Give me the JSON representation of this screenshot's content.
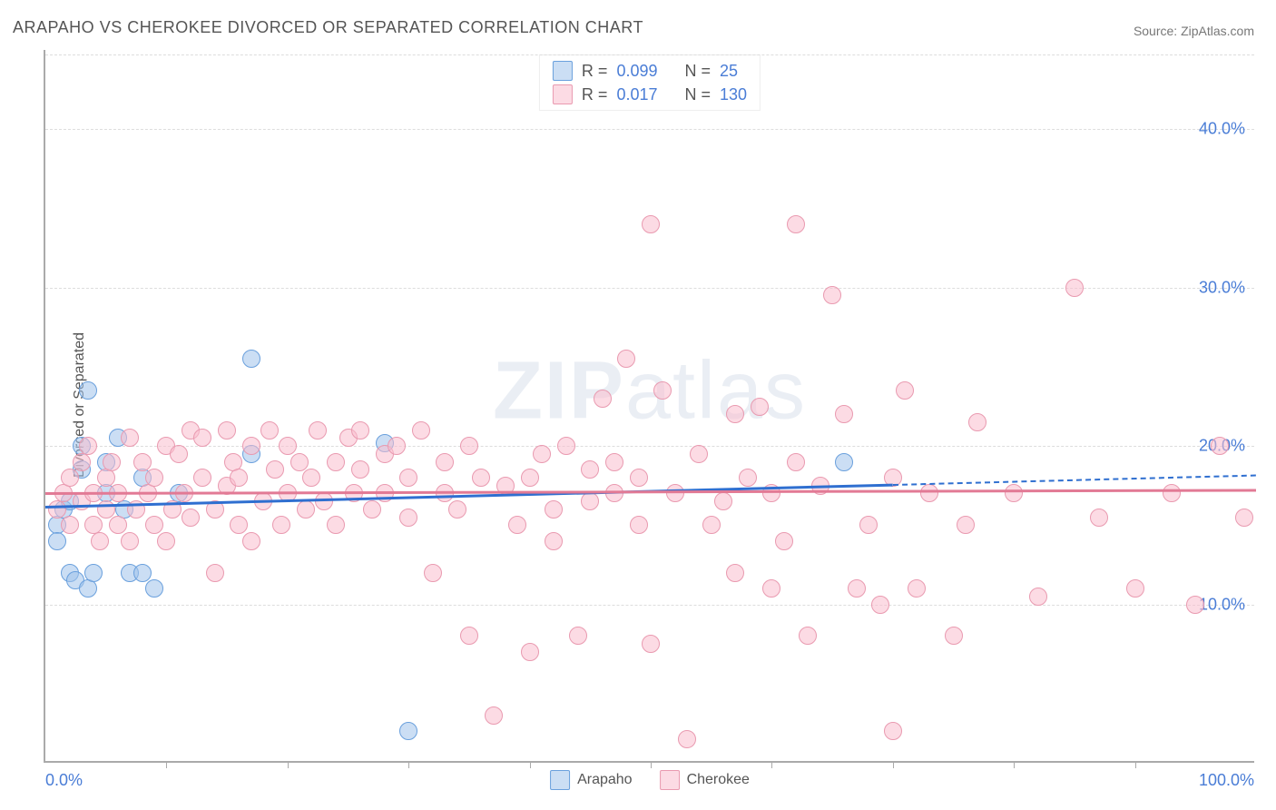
{
  "title": "ARAPAHO VS CHEROKEE DIVORCED OR SEPARATED CORRELATION CHART",
  "source": "Source: ZipAtlas.com",
  "ylabel": "Divorced or Separated",
  "watermark_a": "ZIP",
  "watermark_b": "atlas",
  "chart": {
    "type": "scatter",
    "xlim": [
      0,
      100
    ],
    "ylim": [
      0,
      45
    ],
    "y_ticks": [
      10,
      20,
      30,
      40
    ],
    "y_tick_labels": [
      "10.0%",
      "20.0%",
      "30.0%",
      "40.0%"
    ],
    "x_ticks": [
      10,
      20,
      30,
      40,
      50,
      60,
      70,
      80,
      90
    ],
    "x_min_label": "0.0%",
    "x_max_label": "100.0%",
    "background_color": "#ffffff",
    "grid_color": "#dddddd",
    "axis_color": "#aaaaaa",
    "tick_label_color": "#4a7dd6",
    "marker_radius": 10,
    "marker_border_width": 1.2,
    "series": [
      {
        "name": "Arapaho",
        "fill": "rgba(160,195,235,0.55)",
        "stroke": "#6aa0dd",
        "trend_color": "#2f6fd0",
        "trend": {
          "x1": 0,
          "y1": 16.2,
          "x2": 70,
          "y2": 17.6,
          "dash_to_x": 100,
          "dash_to_y": 18.2
        },
        "points": [
          [
            1,
            15
          ],
          [
            1,
            14
          ],
          [
            1.5,
            16
          ],
          [
            2,
            12
          ],
          [
            2,
            16.5
          ],
          [
            2.5,
            11.5
          ],
          [
            3,
            18.5
          ],
          [
            3,
            20
          ],
          [
            3.5,
            23.5
          ],
          [
            3.5,
            11
          ],
          [
            4,
            12
          ],
          [
            5,
            17
          ],
          [
            5,
            19
          ],
          [
            6,
            20.5
          ],
          [
            6.5,
            16
          ],
          [
            7,
            12
          ],
          [
            8,
            18
          ],
          [
            8,
            12
          ],
          [
            9,
            11
          ],
          [
            11,
            17
          ],
          [
            17,
            25.5
          ],
          [
            17,
            19.5
          ],
          [
            28,
            20.2
          ],
          [
            30,
            2
          ],
          [
            66,
            19
          ]
        ]
      },
      {
        "name": "Cherokee",
        "fill": "rgba(250,190,205,0.55)",
        "stroke": "#e99ab0",
        "trend_color": "#e27a95",
        "trend": {
          "x1": 0,
          "y1": 17.1,
          "x2": 100,
          "y2": 17.3
        },
        "points": [
          [
            1,
            16
          ],
          [
            1.5,
            17
          ],
          [
            2,
            15
          ],
          [
            2,
            18
          ],
          [
            3,
            16.5
          ],
          [
            3,
            19
          ],
          [
            3.5,
            20
          ],
          [
            4,
            15
          ],
          [
            4,
            17
          ],
          [
            4.5,
            14
          ],
          [
            5,
            16
          ],
          [
            5,
            18
          ],
          [
            5.5,
            19
          ],
          [
            6,
            15
          ],
          [
            6,
            17
          ],
          [
            7,
            20.5
          ],
          [
            7,
            14
          ],
          [
            7.5,
            16
          ],
          [
            8,
            19
          ],
          [
            8.5,
            17
          ],
          [
            9,
            18
          ],
          [
            9,
            15
          ],
          [
            10,
            20
          ],
          [
            10,
            14
          ],
          [
            10.5,
            16
          ],
          [
            11,
            19.5
          ],
          [
            11.5,
            17
          ],
          [
            12,
            15.5
          ],
          [
            12,
            21
          ],
          [
            13,
            18
          ],
          [
            13,
            20.5
          ],
          [
            14,
            12
          ],
          [
            14,
            16
          ],
          [
            15,
            21
          ],
          [
            15,
            17.5
          ],
          [
            15.5,
            19
          ],
          [
            16,
            15
          ],
          [
            16,
            18
          ],
          [
            17,
            20
          ],
          [
            17,
            14
          ],
          [
            18,
            16.5
          ],
          [
            18.5,
            21
          ],
          [
            19,
            18.5
          ],
          [
            19.5,
            15
          ],
          [
            20,
            17
          ],
          [
            20,
            20
          ],
          [
            21,
            19
          ],
          [
            21.5,
            16
          ],
          [
            22,
            18
          ],
          [
            22.5,
            21
          ],
          [
            23,
            16.5
          ],
          [
            24,
            19
          ],
          [
            24,
            15
          ],
          [
            25,
            20.5
          ],
          [
            25.5,
            17
          ],
          [
            26,
            18.5
          ],
          [
            26,
            21
          ],
          [
            27,
            16
          ],
          [
            28,
            19.5
          ],
          [
            28,
            17
          ],
          [
            29,
            20
          ],
          [
            30,
            18
          ],
          [
            30,
            15.5
          ],
          [
            31,
            21
          ],
          [
            32,
            12
          ],
          [
            33,
            19
          ],
          [
            33,
            17
          ],
          [
            34,
            16
          ],
          [
            35,
            20
          ],
          [
            35,
            8
          ],
          [
            36,
            18
          ],
          [
            37,
            3
          ],
          [
            38,
            17.5
          ],
          [
            39,
            15
          ],
          [
            40,
            18
          ],
          [
            40,
            7
          ],
          [
            41,
            19.5
          ],
          [
            42,
            16
          ],
          [
            42,
            14
          ],
          [
            43,
            20
          ],
          [
            44,
            8
          ],
          [
            45,
            18.5
          ],
          [
            45,
            16.5
          ],
          [
            46,
            23
          ],
          [
            47,
            17
          ],
          [
            47,
            19
          ],
          [
            48,
            25.5
          ],
          [
            49,
            15
          ],
          [
            49,
            18
          ],
          [
            50,
            7.5
          ],
          [
            50,
            34
          ],
          [
            51,
            23.5
          ],
          [
            52,
            17
          ],
          [
            53,
            1.5
          ],
          [
            54,
            19.5
          ],
          [
            55,
            15
          ],
          [
            56,
            16.5
          ],
          [
            57,
            22
          ],
          [
            57,
            12
          ],
          [
            58,
            18
          ],
          [
            59,
            22.5
          ],
          [
            60,
            11
          ],
          [
            60,
            17
          ],
          [
            61,
            14
          ],
          [
            62,
            34
          ],
          [
            62,
            19
          ],
          [
            63,
            8
          ],
          [
            64,
            17.5
          ],
          [
            65,
            29.5
          ],
          [
            66,
            22
          ],
          [
            67,
            11
          ],
          [
            68,
            15
          ],
          [
            69,
            10
          ],
          [
            70,
            18
          ],
          [
            70,
            2
          ],
          [
            71,
            23.5
          ],
          [
            72,
            11
          ],
          [
            73,
            17
          ],
          [
            75,
            8
          ],
          [
            76,
            15
          ],
          [
            77,
            21.5
          ],
          [
            80,
            17
          ],
          [
            82,
            10.5
          ],
          [
            85,
            30
          ],
          [
            87,
            15.5
          ],
          [
            90,
            11
          ],
          [
            93,
            17
          ],
          [
            95,
            10
          ],
          [
            97,
            20
          ],
          [
            99,
            15.5
          ]
        ]
      }
    ],
    "top_legend": [
      {
        "series_index": 0,
        "r_label": "R =",
        "r_value": "0.099",
        "n_label": "N =",
        "n_value": "25"
      },
      {
        "series_index": 1,
        "r_label": "R =",
        "r_value": "0.017",
        "n_label": "N =",
        "n_value": "130"
      }
    ]
  }
}
